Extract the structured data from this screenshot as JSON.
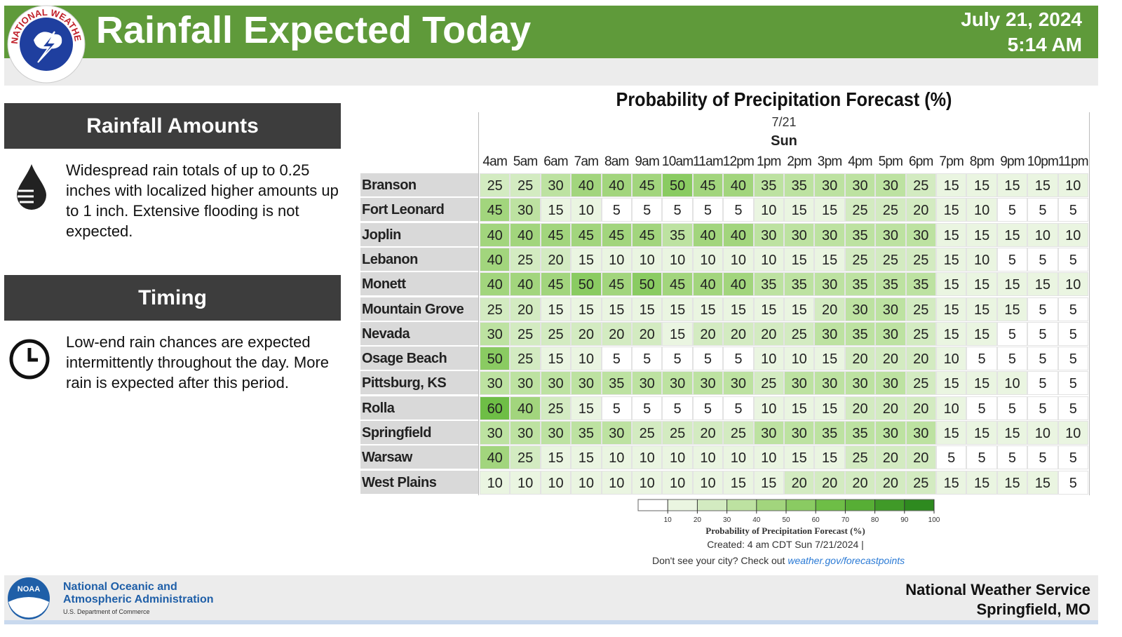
{
  "header": {
    "logo_text": "NATIONAL WEATHER SERVICE",
    "title": "Rainfall Expected Today",
    "date": "July 21, 2024",
    "time": "5:14 AM"
  },
  "sections": [
    {
      "heading": "Rainfall Amounts",
      "text": "Widespread rain totals of up to 0.25 inches with localized higher amounts up to 1 inch. Extensive flooding is not expected."
    },
    {
      "heading": "Timing",
      "text": "Low-end rain chances are expected intermittently throughout the day. More rain is expected after this period."
    }
  ],
  "table": {
    "title": "Probability of Precipitation Forecast (%)",
    "date": "7/21",
    "day": "Sun",
    "hours": [
      "4am",
      "5am",
      "6am",
      "7am",
      "8am",
      "9am",
      "10am",
      "11am",
      "12pm",
      "1pm",
      "2pm",
      "3pm",
      "4pm",
      "5pm",
      "6pm",
      "7pm",
      "8pm",
      "9pm",
      "10pm",
      "11pm"
    ],
    "rows": [
      {
        "city": "Branson",
        "values": [
          25,
          25,
          30,
          40,
          40,
          45,
          50,
          45,
          40,
          35,
          35,
          30,
          30,
          30,
          25,
          15,
          15,
          15,
          15,
          10
        ]
      },
      {
        "city": "Fort Leonard Wood",
        "values": [
          45,
          30,
          15,
          10,
          5,
          5,
          5,
          5,
          5,
          10,
          15,
          15,
          25,
          25,
          20,
          15,
          10,
          5,
          5,
          5
        ]
      },
      {
        "city": "Joplin",
        "values": [
          40,
          40,
          45,
          45,
          45,
          45,
          35,
          40,
          40,
          30,
          30,
          30,
          35,
          30,
          30,
          15,
          15,
          15,
          10,
          10
        ]
      },
      {
        "city": "Lebanon",
        "values": [
          40,
          25,
          20,
          15,
          10,
          10,
          10,
          10,
          10,
          10,
          15,
          15,
          25,
          25,
          25,
          15,
          10,
          5,
          5,
          5
        ]
      },
      {
        "city": "Monett",
        "values": [
          40,
          40,
          45,
          50,
          45,
          50,
          45,
          40,
          40,
          35,
          35,
          30,
          35,
          35,
          35,
          15,
          15,
          15,
          15,
          10
        ]
      },
      {
        "city": "Mountain Grove",
        "values": [
          25,
          20,
          15,
          15,
          15,
          15,
          15,
          15,
          15,
          15,
          15,
          20,
          30,
          30,
          25,
          15,
          15,
          15,
          5,
          5
        ]
      },
      {
        "city": "Nevada",
        "values": [
          30,
          25,
          25,
          20,
          20,
          20,
          15,
          20,
          20,
          20,
          25,
          30,
          35,
          30,
          25,
          15,
          15,
          5,
          5,
          5
        ]
      },
      {
        "city": "Osage Beach",
        "values": [
          50,
          25,
          15,
          10,
          5,
          5,
          5,
          5,
          5,
          10,
          10,
          15,
          20,
          20,
          20,
          10,
          5,
          5,
          5,
          5
        ]
      },
      {
        "city": "Pittsburg, KS",
        "values": [
          30,
          30,
          30,
          30,
          35,
          30,
          30,
          30,
          30,
          25,
          30,
          30,
          30,
          30,
          25,
          15,
          15,
          10,
          5,
          5
        ]
      },
      {
        "city": "Rolla",
        "values": [
          60,
          40,
          25,
          15,
          5,
          5,
          5,
          5,
          5,
          10,
          15,
          15,
          20,
          20,
          20,
          10,
          5,
          5,
          5,
          5
        ]
      },
      {
        "city": "Springfield",
        "values": [
          30,
          30,
          30,
          35,
          30,
          25,
          25,
          20,
          25,
          30,
          30,
          35,
          35,
          30,
          30,
          15,
          15,
          15,
          10,
          10
        ]
      },
      {
        "city": "Warsaw",
        "values": [
          40,
          25,
          15,
          15,
          10,
          10,
          10,
          10,
          10,
          10,
          15,
          15,
          25,
          20,
          20,
          5,
          5,
          5,
          5,
          5
        ]
      },
      {
        "city": "West Plains",
        "values": [
          10,
          10,
          10,
          10,
          10,
          10,
          10,
          10,
          15,
          15,
          20,
          20,
          20,
          20,
          25,
          15,
          15,
          15,
          15,
          5
        ]
      }
    ]
  },
  "legend": {
    "ticks": [
      10,
      20,
      30,
      40,
      50,
      60,
      70,
      80,
      90,
      100
    ],
    "lim": [
      0,
      100
    ],
    "label": "Probability of Precipitation Forecast (%)",
    "colors": [
      "#ffffff",
      "#eaf5e1",
      "#d3ebc1",
      "#bde2a1",
      "#a2d57d",
      "#8acb62",
      "#6ebe46",
      "#57ae35",
      "#409a28",
      "#2e8a1f"
    ]
  },
  "created": "Created: 4 am CDT Sun 7/21/2024 |",
  "note": {
    "text": "Don't see your city? Check out",
    "link": "weather.gov/forecastpoints"
  },
  "footer": {
    "noaa_logo": "NOAA",
    "org_line1": "National Oceanic and",
    "org_line2": "Atmospheric Administration",
    "dept": "U.S. Department of Commerce",
    "office_line1": "National Weather Service",
    "office_line2": "Springfield, MO"
  }
}
